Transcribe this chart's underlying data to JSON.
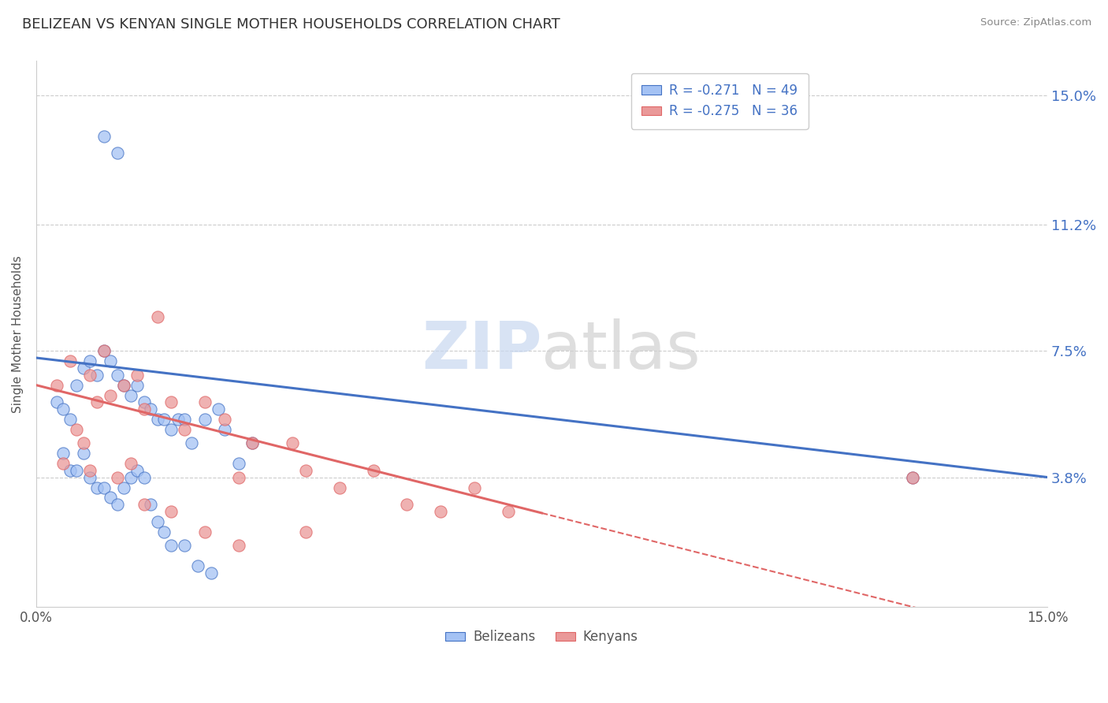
{
  "title": "BELIZEAN VS KENYAN SINGLE MOTHER HOUSEHOLDS CORRELATION CHART",
  "source": "Source: ZipAtlas.com",
  "ylabel": "Single Mother Households",
  "ytick_labels": [
    "15.0%",
    "11.2%",
    "7.5%",
    "3.8%"
  ],
  "ytick_values": [
    0.15,
    0.112,
    0.075,
    0.038
  ],
  "xmin": 0.0,
  "xmax": 0.15,
  "ymin": 0.0,
  "ymax": 0.16,
  "legend_blue": "R = -0.271   N = 49",
  "legend_pink": "R = -0.275   N = 36",
  "belizean_color": "#a4c2f4",
  "kenyan_color": "#ea9999",
  "trend_blue": "#4472c4",
  "trend_pink": "#e06666",
  "belizean_x": [
    0.01,
    0.012,
    0.003,
    0.004,
    0.005,
    0.006,
    0.007,
    0.008,
    0.009,
    0.01,
    0.011,
    0.012,
    0.013,
    0.014,
    0.015,
    0.016,
    0.017,
    0.018,
    0.019,
    0.02,
    0.021,
    0.022,
    0.023,
    0.025,
    0.027,
    0.028,
    0.03,
    0.032,
    0.004,
    0.005,
    0.006,
    0.007,
    0.008,
    0.009,
    0.01,
    0.011,
    0.012,
    0.013,
    0.014,
    0.015,
    0.016,
    0.017,
    0.018,
    0.019,
    0.02,
    0.022,
    0.024,
    0.026,
    0.13
  ],
  "belizean_y": [
    0.138,
    0.133,
    0.06,
    0.058,
    0.055,
    0.065,
    0.07,
    0.072,
    0.068,
    0.075,
    0.072,
    0.068,
    0.065,
    0.062,
    0.065,
    0.06,
    0.058,
    0.055,
    0.055,
    0.052,
    0.055,
    0.055,
    0.048,
    0.055,
    0.058,
    0.052,
    0.042,
    0.048,
    0.045,
    0.04,
    0.04,
    0.045,
    0.038,
    0.035,
    0.035,
    0.032,
    0.03,
    0.035,
    0.038,
    0.04,
    0.038,
    0.03,
    0.025,
    0.022,
    0.018,
    0.018,
    0.012,
    0.01,
    0.038
  ],
  "kenyan_x": [
    0.003,
    0.005,
    0.008,
    0.009,
    0.01,
    0.011,
    0.013,
    0.015,
    0.016,
    0.018,
    0.02,
    0.022,
    0.025,
    0.028,
    0.03,
    0.032,
    0.038,
    0.04,
    0.045,
    0.05,
    0.055,
    0.06,
    0.065,
    0.07,
    0.004,
    0.006,
    0.007,
    0.008,
    0.012,
    0.014,
    0.016,
    0.02,
    0.025,
    0.03,
    0.04,
    0.13
  ],
  "kenyan_y": [
    0.065,
    0.072,
    0.068,
    0.06,
    0.075,
    0.062,
    0.065,
    0.068,
    0.058,
    0.085,
    0.06,
    0.052,
    0.06,
    0.055,
    0.038,
    0.048,
    0.048,
    0.04,
    0.035,
    0.04,
    0.03,
    0.028,
    0.035,
    0.028,
    0.042,
    0.052,
    0.048,
    0.04,
    0.038,
    0.042,
    0.03,
    0.028,
    0.022,
    0.018,
    0.022,
    0.038
  ]
}
